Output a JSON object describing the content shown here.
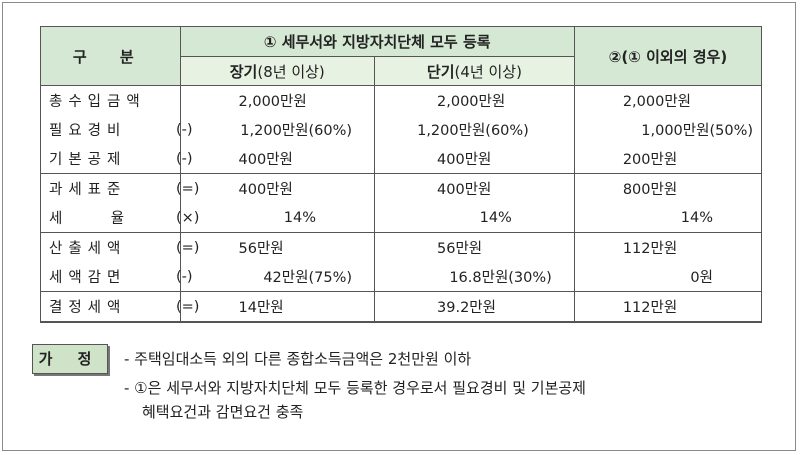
{
  "table": {
    "header_label": "구 분",
    "group1_title": "① 세무서와 지방자치단체 모두 등록",
    "group2_title": "②(① 이외의 경우)",
    "long_term_bold": "장기",
    "long_term_rest": "(8년 이상)",
    "short_term_bold": "단기",
    "short_term_rest": "(4년 이상)",
    "rows": [
      {
        "label": "총수입금액",
        "sign": "",
        "long": "2,000만원",
        "short": "2,000만원",
        "other": "2,000만원"
      },
      {
        "label": "필요경비",
        "sign": "(-)",
        "long": "1,200만원(60%)",
        "short": "1,200만원(60%)",
        "other": "1,000만원(50%)"
      },
      {
        "label": "기본공제",
        "sign": "(-)",
        "long": "400만원",
        "short": "400만원",
        "other": "200만원"
      },
      {
        "label": "과세표준",
        "sign": "(=)",
        "long": "400만원",
        "short": "400만원",
        "other": "800만원"
      },
      {
        "label": "세    율",
        "sign": "(×)",
        "long": "14%",
        "short": "14%",
        "other": "14%"
      },
      {
        "label": "산출세액",
        "sign": "(=)",
        "long": "56만원",
        "short": "56만원",
        "other": "112만원"
      },
      {
        "label": "세액감면",
        "sign": "(-)",
        "long": "42만원(75%)",
        "short": "16.8만원(30%)",
        "other": "0원"
      },
      {
        "label": "결정세액",
        "sign": "(=)",
        "long": "14만원",
        "short": "39.2만원",
        "other": "112만원"
      }
    ]
  },
  "assumption": {
    "badge": "가 정",
    "line1": "- 주택임대소득 외의 다른 종합소득금액은 2천만원 이하",
    "line2": "- ①은 세무서와 지방자치단체 모두 등록한 경우로서 필요경비 및 기본공제",
    "line3": "혜택요건과 감면요건 충족"
  }
}
